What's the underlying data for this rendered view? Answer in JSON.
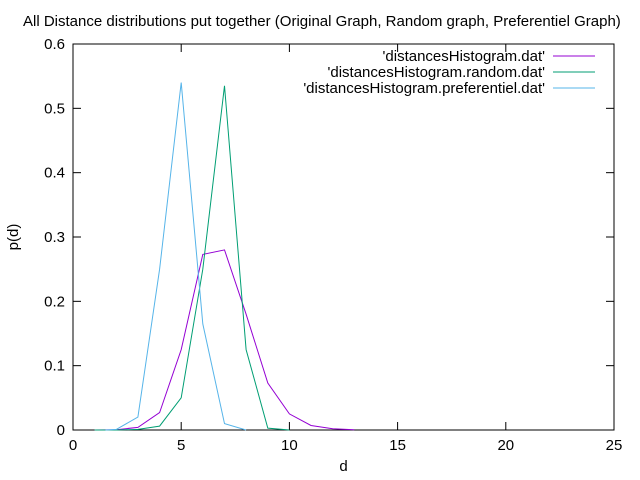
{
  "chart_data": {
    "type": "line",
    "title": "All Distance distributions put together (Original Graph, Random graph, Preferentiel Graph)",
    "xlabel": "d",
    "ylabel": "p(d)",
    "xlim": [
      0,
      25
    ],
    "ylim": [
      0,
      0.6
    ],
    "xticks": [
      "0",
      "5",
      "10",
      "15",
      "20",
      "25"
    ],
    "yticks": [
      "0",
      "0.1",
      "0.2",
      "0.3",
      "0.4",
      "0.5",
      "0.6"
    ],
    "grid": false,
    "legend_position": "top-right",
    "series": [
      {
        "name": "'distancesHistogram.dat'",
        "color": "#9400d3",
        "x": [
          1,
          2,
          3,
          4,
          5,
          6,
          7,
          8,
          9,
          10,
          11,
          12,
          13
        ],
        "y": [
          0.0,
          0.0005,
          0.004,
          0.027,
          0.125,
          0.273,
          0.28,
          0.18,
          0.073,
          0.025,
          0.007,
          0.002,
          0.0005
        ]
      },
      {
        "name": "'distancesHistogram.random.dat'",
        "color": "#009e73",
        "x": [
          1,
          2,
          3,
          4,
          5,
          6,
          7,
          8,
          9,
          10
        ],
        "y": [
          0.0,
          0.0,
          0.001,
          0.006,
          0.05,
          0.25,
          0.535,
          0.125,
          0.003,
          0.0
        ]
      },
      {
        "name": "'distancesHistogram.preferentiel.dat'",
        "color": "#56b4e9",
        "x": [
          1.5,
          2,
          3,
          4,
          5,
          6,
          7,
          8
        ],
        "y": [
          0.0,
          0.001,
          0.02,
          0.25,
          0.54,
          0.165,
          0.01,
          0.0
        ]
      }
    ]
  }
}
